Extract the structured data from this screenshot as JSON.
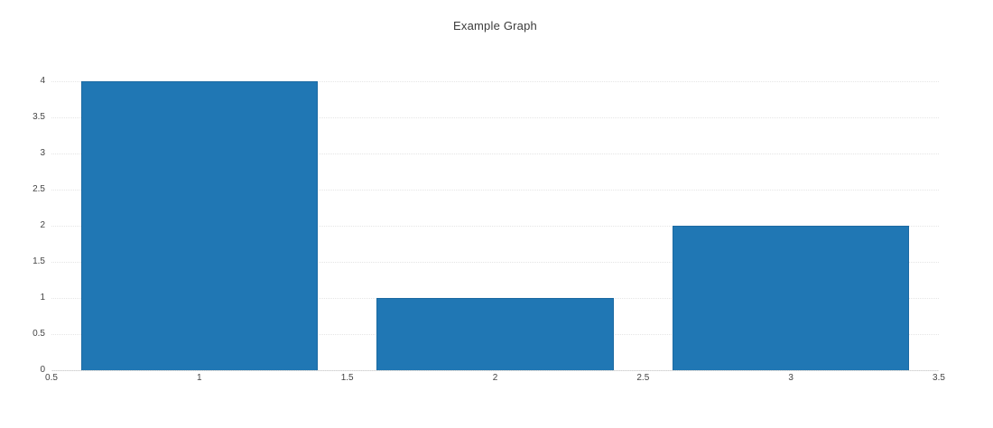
{
  "chart_data": {
    "type": "bar",
    "title": "Example Graph",
    "x": [
      1,
      2,
      3
    ],
    "values": [
      4,
      1,
      2
    ],
    "bar_width": 0.8,
    "xlim": [
      0.5,
      3.5
    ],
    "ylim": [
      0,
      4
    ],
    "x_ticks": [
      0.5,
      1,
      1.5,
      2,
      2.5,
      3,
      3.5
    ],
    "x_tick_labels": [
      "0.5",
      "1",
      "1.5",
      "2",
      "2.5",
      "3",
      "3.5"
    ],
    "y_ticks": [
      0,
      0.5,
      1,
      1.5,
      2,
      2.5,
      3,
      3.5,
      4
    ],
    "y_tick_labels": [
      "0",
      "0.5",
      "1",
      "1.5",
      "2",
      "2.5",
      "3",
      "3.5",
      "4"
    ],
    "xlabel": "",
    "ylabel": "",
    "legend": "none",
    "grid": "horizontal-dotted",
    "colors": {
      "bar_fill": "#2077b4",
      "bar_edge": "#1c6aa2",
      "gridline": "#e5e5e5",
      "axis_line": "#d2d2d2",
      "tick_label": "#444444",
      "title": "#3b3b3b",
      "background": "#ffffff"
    }
  }
}
